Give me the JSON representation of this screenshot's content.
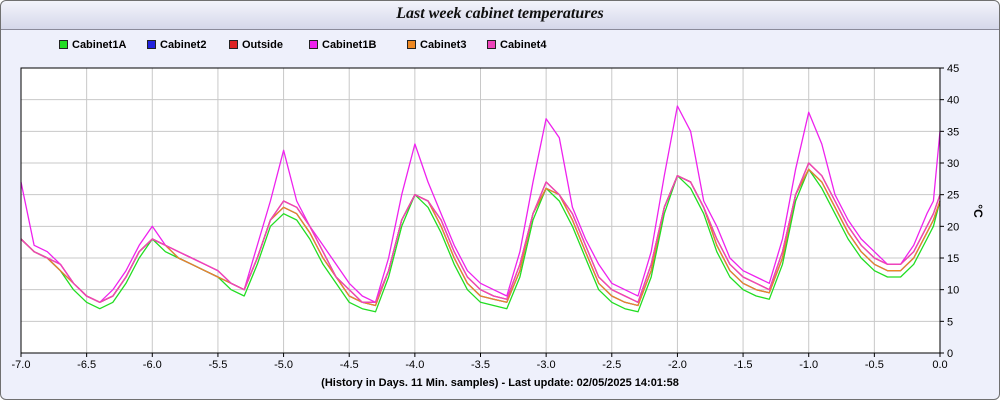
{
  "chart_data": {
    "type": "line",
    "title": "Last week cabinet temperatures",
    "xlabel": "(History in Days. 11 Min. samples) - Last update: 02/05/2025 14:01:58",
    "ylabel": "°C",
    "xlim": [
      -7.0,
      0.0
    ],
    "ylim": [
      0,
      45
    ],
    "x_ticks": [
      "-7.0",
      "-6.5",
      "-6.0",
      "-5.5",
      "-5.0",
      "-4.5",
      "-4.0",
      "-3.5",
      "-3.0",
      "-2.5",
      "-2.0",
      "-1.5",
      "-1.0",
      "-0.5",
      "0.0"
    ],
    "y_ticks": [
      "0",
      "5",
      "10",
      "15",
      "20",
      "25",
      "30",
      "35",
      "40",
      "45"
    ],
    "grid": true,
    "legend_position": "top-left",
    "x": [
      -7.0,
      -6.9,
      -6.8,
      -6.7,
      -6.6,
      -6.5,
      -6.4,
      -6.3,
      -6.2,
      -6.1,
      -6.0,
      -5.9,
      -5.8,
      -5.7,
      -5.6,
      -5.5,
      -5.4,
      -5.3,
      -5.2,
      -5.1,
      -5.0,
      -4.9,
      -4.8,
      -4.7,
      -4.6,
      -4.5,
      -4.4,
      -4.3,
      -4.2,
      -4.1,
      -4.0,
      -3.9,
      -3.8,
      -3.7,
      -3.6,
      -3.5,
      -3.4,
      -3.3,
      -3.2,
      -3.1,
      -3.0,
      -2.9,
      -2.8,
      -2.7,
      -2.6,
      -2.5,
      -2.4,
      -2.3,
      -2.2,
      -2.1,
      -2.0,
      -1.9,
      -1.8,
      -1.7,
      -1.6,
      -1.5,
      -1.4,
      -1.3,
      -1.2,
      -1.1,
      -1.0,
      -0.9,
      -0.8,
      -0.7,
      -0.6,
      -0.5,
      -0.4,
      -0.3,
      -0.2,
      -0.1,
      -0.05,
      0.0
    ],
    "series": [
      {
        "name": "Cabinet1A",
        "color": "#22dd22",
        "values": [
          18,
          16,
          15,
          13,
          10,
          8,
          7,
          8,
          11,
          15,
          18,
          16,
          15,
          14,
          13,
          12,
          10,
          9,
          14,
          20,
          22,
          21,
          18,
          14,
          11,
          8,
          7,
          6.5,
          12,
          20,
          25,
          23,
          19,
          14,
          10,
          8,
          7.5,
          7,
          12,
          21,
          26,
          24,
          20,
          15,
          10,
          8,
          7,
          6.5,
          12,
          22,
          28,
          26,
          22,
          16,
          12,
          10,
          9,
          8.5,
          14,
          24,
          29,
          26,
          22,
          18,
          15,
          13,
          12,
          12,
          14,
          18,
          20,
          24
        ]
      },
      {
        "name": "Cabinet2",
        "color": "#2222dd",
        "values": [
          18,
          16,
          15,
          13,
          11,
          9,
          8,
          9,
          12,
          16,
          18,
          17,
          15,
          14,
          13,
          12,
          11,
          10,
          15,
          21,
          23,
          22,
          19,
          15,
          12,
          9,
          8,
          7.5,
          13,
          21,
          25,
          24,
          20,
          15,
          11,
          9,
          8.5,
          8,
          13,
          22,
          26,
          25,
          21,
          16,
          11,
          9,
          8,
          7.5,
          13,
          23,
          28,
          27,
          23,
          17,
          13,
          11,
          10,
          9.5,
          15,
          25,
          29,
          27,
          23,
          19,
          16,
          14,
          13,
          13,
          15,
          19,
          21,
          24
        ]
      },
      {
        "name": "Outside",
        "color": "#dd2222",
        "values": [
          18,
          16,
          15,
          14,
          11,
          9,
          8,
          9,
          12,
          16,
          18,
          17,
          16,
          15,
          14,
          13,
          11,
          10,
          15,
          21,
          24,
          23,
          20,
          16,
          12,
          10,
          8,
          8,
          13,
          21,
          25,
          24,
          21,
          16,
          12,
          10,
          9,
          8.5,
          14,
          22,
          27,
          25,
          22,
          17,
          12,
          10,
          9,
          8,
          14,
          23,
          28,
          27,
          23,
          18,
          14,
          12,
          11,
          10,
          16,
          25,
          30,
          28,
          24,
          20,
          17,
          15,
          14,
          14,
          16,
          20,
          22,
          25
        ]
      },
      {
        "name": "Cabinet1B",
        "color": "#ee22ee",
        "values": [
          27,
          17,
          16,
          14,
          11,
          9,
          8,
          10,
          13,
          17,
          20,
          17,
          16,
          15,
          14,
          13,
          11,
          10,
          17,
          24,
          32,
          24,
          20,
          17,
          14,
          11,
          9,
          8,
          15,
          25,
          33,
          27,
          22,
          17,
          13,
          11,
          10,
          9,
          16,
          27,
          37,
          34,
          23,
          18,
          14,
          11,
          10,
          9,
          16,
          28,
          39,
          35,
          24,
          20,
          15,
          13,
          12,
          11,
          18,
          29,
          38,
          33,
          25,
          21,
          18,
          16,
          14,
          14,
          17,
          22,
          24,
          35
        ]
      },
      {
        "name": "Cabinet3",
        "color": "#ee8822",
        "values": [
          18,
          16,
          15,
          13,
          11,
          9,
          8,
          9,
          12,
          16,
          18,
          17,
          15,
          14,
          13,
          12,
          11,
          10,
          15,
          21,
          23,
          22,
          19,
          15,
          12,
          9,
          8,
          7.5,
          13,
          21,
          25,
          24,
          20,
          15,
          11,
          9,
          8.5,
          8,
          13,
          22,
          26,
          25,
          21,
          16,
          11,
          9,
          8,
          7.5,
          13,
          23,
          28,
          27,
          23,
          17,
          13,
          11,
          10,
          9.5,
          15,
          25,
          29,
          27,
          23,
          19,
          16,
          14,
          13,
          13,
          15,
          19,
          21,
          24
        ]
      },
      {
        "name": "Cabinet4",
        "color": "#ee44bb",
        "values": [
          18,
          16,
          15,
          14,
          11,
          9,
          8,
          9,
          12,
          16,
          18,
          17,
          16,
          15,
          14,
          13,
          11,
          10,
          15,
          21,
          24,
          23,
          20,
          16,
          12,
          10,
          8,
          8,
          13,
          21,
          25,
          24,
          21,
          16,
          12,
          10,
          9,
          8.5,
          14,
          22,
          27,
          25,
          22,
          17,
          12,
          10,
          9,
          8,
          14,
          23,
          28,
          27,
          23,
          18,
          14,
          12,
          11,
          10,
          16,
          25,
          30,
          28,
          24,
          20,
          17,
          15,
          14,
          14,
          16,
          20,
          22,
          25
        ]
      }
    ]
  }
}
